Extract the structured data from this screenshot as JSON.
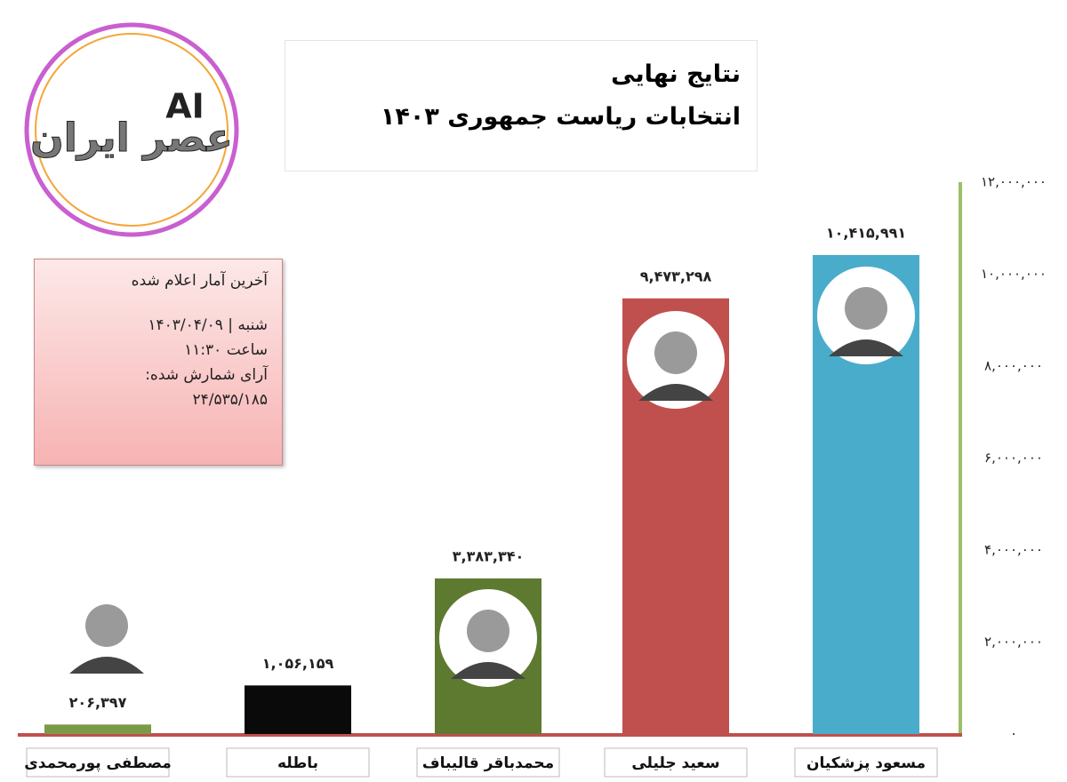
{
  "logo_mark": "AI",
  "logo_text": "عصر ایران",
  "info_box": [
    "آخرین آمار اعلام شده",
    "شنبه | ۱۴۰۳/۰۴/۰۹",
    "ساعت ۱۱:۳۰",
    "آرای شمارش شده:",
    "۲۴/۵۳۵/۱۸۵"
  ],
  "chart_data": {
    "type": "bar",
    "title": "نتایج نهایی",
    "subtitle": "انتخابات ریاست جمهوری ۱۴۰۳",
    "categories": [
      "مصطفی پورمحمدی",
      "باطله",
      "محمدباقر قالیباف",
      "سعید جلیلی",
      "مسعود پزشکیان"
    ],
    "values": [
      206397,
      1056159,
      3383340,
      9473298,
      10415991
    ],
    "value_labels": [
      "۲۰۶,۳۹۷",
      "۱,۰۵۶,۱۵۹",
      "۳,۳۸۳,۳۴۰",
      "۹,۴۷۳,۲۹۸",
      "۱۰,۴۱۵,۹۹۱"
    ],
    "colors": [
      "#7a9a48",
      "#0a0a0a",
      "#5e7a30",
      "#c0504d",
      "#4aaccb"
    ],
    "ylim": [
      0,
      12000000
    ],
    "yticks": [
      {
        "value": 0,
        "label": "۰"
      },
      {
        "value": 2000000,
        "label": "۲,۰۰۰,۰۰۰"
      },
      {
        "value": 4000000,
        "label": "۴,۰۰۰,۰۰۰"
      },
      {
        "value": 6000000,
        "label": "۶,۰۰۰,۰۰۰"
      },
      {
        "value": 8000000,
        "label": "۸,۰۰۰,۰۰۰"
      },
      {
        "value": 10000000,
        "label": "۱۰,۰۰۰,۰۰۰"
      },
      {
        "value": 12000000,
        "label": "۱۲,۰۰۰,۰۰۰"
      }
    ],
    "grid": false
  }
}
